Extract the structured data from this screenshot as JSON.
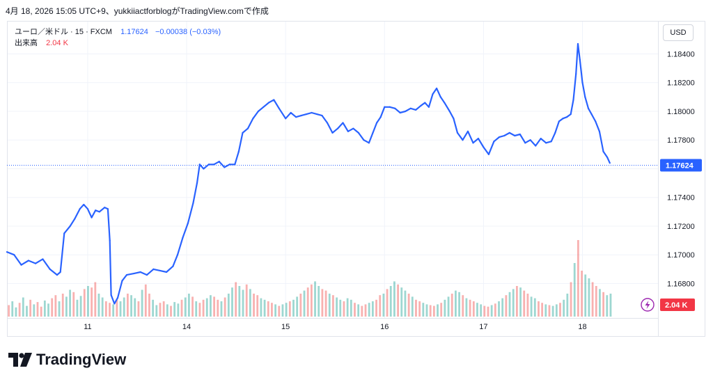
{
  "caption": "4月 18, 2026 15:05 UTC+9、yukkiiactforblogがTradingView.comで作成",
  "legend": {
    "symbol": "ユーロ／米ドル · 15 · FXCM",
    "last": "1.17624",
    "change": "−0.00038 (−0.03%)",
    "volume_label": "出来高",
    "volume_value": "2.04 K"
  },
  "currency_button": "USD",
  "price_tag": "1.17624",
  "volume_tag": "2.04 K",
  "brand": "TradingView",
  "colors": {
    "line": "#2962ff",
    "vol_up": "#26a69a",
    "vol_down": "#ef5350",
    "tag_price": "#2962ff",
    "tag_volume": "#f23645",
    "flash": "#9c27b0"
  },
  "icons": {
    "flash": "lightning-icon",
    "logo": "tradingview-logo-icon"
  },
  "chart_data": {
    "type": "line",
    "title": "ユーロ／米ドル · 15 · FXCM",
    "y_ticks": [
      "1.18400",
      "1.18200",
      "1.18000",
      "1.17800",
      "1.17600",
      "1.17400",
      "1.17200",
      "1.17000",
      "1.16800"
    ],
    "ylim": [
      1.1656,
      1.1863
    ],
    "x_ticks": [
      "11",
      "14",
      "15",
      "16",
      "17",
      "18"
    ],
    "x_tick_pos": [
      0.124,
      0.276,
      0.428,
      0.58,
      0.732,
      0.884
    ],
    "last_value": 1.17624,
    "grid": true,
    "series": [
      {
        "points": [
          [
            0.0,
            1.1702
          ],
          [
            0.011,
            1.17
          ],
          [
            0.022,
            1.1693
          ],
          [
            0.033,
            1.1696
          ],
          [
            0.044,
            1.1694
          ],
          [
            0.055,
            1.1697
          ],
          [
            0.066,
            1.169
          ],
          [
            0.077,
            1.1686
          ],
          [
            0.082,
            1.1688
          ],
          [
            0.088,
            1.1715
          ],
          [
            0.097,
            1.172
          ],
          [
            0.104,
            1.1725
          ],
          [
            0.112,
            1.1732
          ],
          [
            0.118,
            1.1735
          ],
          [
            0.124,
            1.1732
          ],
          [
            0.13,
            1.1726
          ],
          [
            0.136,
            1.1731
          ],
          [
            0.142,
            1.173
          ],
          [
            0.15,
            1.1733
          ],
          [
            0.155,
            1.1732
          ],
          [
            0.158,
            1.171
          ],
          [
            0.16,
            1.1672
          ],
          [
            0.165,
            1.1666
          ],
          [
            0.17,
            1.167
          ],
          [
            0.177,
            1.1682
          ],
          [
            0.184,
            1.1686
          ],
          [
            0.195,
            1.1687
          ],
          [
            0.205,
            1.1688
          ],
          [
            0.215,
            1.1686
          ],
          [
            0.225,
            1.169
          ],
          [
            0.235,
            1.1689
          ],
          [
            0.245,
            1.1688
          ],
          [
            0.255,
            1.1692
          ],
          [
            0.262,
            1.17
          ],
          [
            0.27,
            1.1712
          ],
          [
            0.278,
            1.1722
          ],
          [
            0.286,
            1.1736
          ],
          [
            0.292,
            1.175
          ],
          [
            0.296,
            1.1763
          ],
          [
            0.302,
            1.176
          ],
          [
            0.31,
            1.1763
          ],
          [
            0.318,
            1.1763
          ],
          [
            0.326,
            1.1765
          ],
          [
            0.334,
            1.1761
          ],
          [
            0.342,
            1.1763
          ],
          [
            0.35,
            1.1763
          ],
          [
            0.356,
            1.1772
          ],
          [
            0.362,
            1.1785
          ],
          [
            0.37,
            1.1788
          ],
          [
            0.378,
            1.1795
          ],
          [
            0.386,
            1.18
          ],
          [
            0.394,
            1.1803
          ],
          [
            0.402,
            1.1806
          ],
          [
            0.41,
            1.1808
          ],
          [
            0.418,
            1.1802
          ],
          [
            0.428,
            1.1795
          ],
          [
            0.436,
            1.1799
          ],
          [
            0.444,
            1.1796
          ],
          [
            0.452,
            1.1797
          ],
          [
            0.46,
            1.1798
          ],
          [
            0.468,
            1.1799
          ],
          [
            0.476,
            1.1798
          ],
          [
            0.484,
            1.1797
          ],
          [
            0.492,
            1.1792
          ],
          [
            0.5,
            1.1785
          ],
          [
            0.508,
            1.1788
          ],
          [
            0.516,
            1.1792
          ],
          [
            0.524,
            1.1786
          ],
          [
            0.532,
            1.1788
          ],
          [
            0.54,
            1.1785
          ],
          [
            0.548,
            1.178
          ],
          [
            0.556,
            1.1778
          ],
          [
            0.562,
            1.1785
          ],
          [
            0.568,
            1.1792
          ],
          [
            0.574,
            1.1796
          ],
          [
            0.58,
            1.1803
          ],
          [
            0.588,
            1.1803
          ],
          [
            0.596,
            1.1802
          ],
          [
            0.604,
            1.1799
          ],
          [
            0.612,
            1.18
          ],
          [
            0.62,
            1.1802
          ],
          [
            0.628,
            1.1801
          ],
          [
            0.636,
            1.1804
          ],
          [
            0.642,
            1.1806
          ],
          [
            0.648,
            1.1803
          ],
          [
            0.654,
            1.1812
          ],
          [
            0.66,
            1.1816
          ],
          [
            0.666,
            1.181
          ],
          [
            0.672,
            1.1806
          ],
          [
            0.68,
            1.18
          ],
          [
            0.686,
            1.1795
          ],
          [
            0.692,
            1.1785
          ],
          [
            0.7,
            1.178
          ],
          [
            0.708,
            1.1786
          ],
          [
            0.716,
            1.1778
          ],
          [
            0.724,
            1.1781
          ],
          [
            0.732,
            1.1775
          ],
          [
            0.74,
            1.177
          ],
          [
            0.748,
            1.1779
          ],
          [
            0.756,
            1.1782
          ],
          [
            0.764,
            1.1783
          ],
          [
            0.772,
            1.1785
          ],
          [
            0.78,
            1.1783
          ],
          [
            0.788,
            1.1784
          ],
          [
            0.796,
            1.1778
          ],
          [
            0.804,
            1.178
          ],
          [
            0.812,
            1.1776
          ],
          [
            0.82,
            1.1781
          ],
          [
            0.828,
            1.1778
          ],
          [
            0.836,
            1.1779
          ],
          [
            0.842,
            1.1785
          ],
          [
            0.848,
            1.1793
          ],
          [
            0.854,
            1.1795
          ],
          [
            0.86,
            1.1796
          ],
          [
            0.866,
            1.1798
          ],
          [
            0.87,
            1.1808
          ],
          [
            0.874,
            1.1826
          ],
          [
            0.877,
            1.1847
          ],
          [
            0.88,
            1.1836
          ],
          [
            0.884,
            1.182
          ],
          [
            0.888,
            1.181
          ],
          [
            0.893,
            1.1802
          ],
          [
            0.898,
            1.1798
          ],
          [
            0.904,
            1.1793
          ],
          [
            0.91,
            1.1786
          ],
          [
            0.916,
            1.1772
          ],
          [
            0.922,
            1.1768
          ],
          [
            0.926,
            1.1764
          ]
        ]
      }
    ],
    "volume_bars": [
      0.15,
      0.2,
      0.12,
      0.18,
      0.25,
      0.14,
      0.22,
      0.16,
      0.19,
      0.13,
      0.21,
      0.17,
      0.24,
      0.28,
      0.2,
      0.3,
      0.26,
      0.35,
      0.32,
      0.22,
      0.27,
      0.36,
      0.4,
      0.38,
      0.45,
      0.3,
      0.25,
      0.2,
      0.18,
      0.16,
      0.22,
      0.2,
      0.25,
      0.3,
      0.28,
      0.24,
      0.2,
      0.35,
      0.42,
      0.3,
      0.22,
      0.15,
      0.18,
      0.2,
      0.16,
      0.14,
      0.19,
      0.17,
      0.22,
      0.25,
      0.3,
      0.26,
      0.2,
      0.18,
      0.22,
      0.24,
      0.28,
      0.26,
      0.22,
      0.2,
      0.25,
      0.3,
      0.38,
      0.45,
      0.4,
      0.35,
      0.42,
      0.36,
      0.3,
      0.28,
      0.24,
      0.22,
      0.2,
      0.18,
      0.16,
      0.14,
      0.16,
      0.18,
      0.2,
      0.22,
      0.26,
      0.3,
      0.34,
      0.38,
      0.42,
      0.46,
      0.4,
      0.36,
      0.34,
      0.3,
      0.28,
      0.25,
      0.22,
      0.2,
      0.24,
      0.22,
      0.18,
      0.16,
      0.14,
      0.16,
      0.18,
      0.2,
      0.22,
      0.28,
      0.3,
      0.36,
      0.4,
      0.46,
      0.42,
      0.38,
      0.34,
      0.3,
      0.26,
      0.22,
      0.2,
      0.18,
      0.16,
      0.15,
      0.14,
      0.16,
      0.18,
      0.22,
      0.26,
      0.3,
      0.34,
      0.32,
      0.28,
      0.24,
      0.22,
      0.2,
      0.18,
      0.16,
      0.14,
      0.13,
      0.15,
      0.17,
      0.2,
      0.24,
      0.28,
      0.32,
      0.36,
      0.4,
      0.38,
      0.34,
      0.3,
      0.26,
      0.24,
      0.2,
      0.18,
      0.16,
      0.15,
      0.14,
      0.16,
      0.18,
      0.22,
      0.3,
      0.45,
      0.7,
      1.0,
      0.6,
      0.55,
      0.5,
      0.45,
      0.4,
      0.36,
      0.32,
      0.28,
      0.3
    ]
  }
}
